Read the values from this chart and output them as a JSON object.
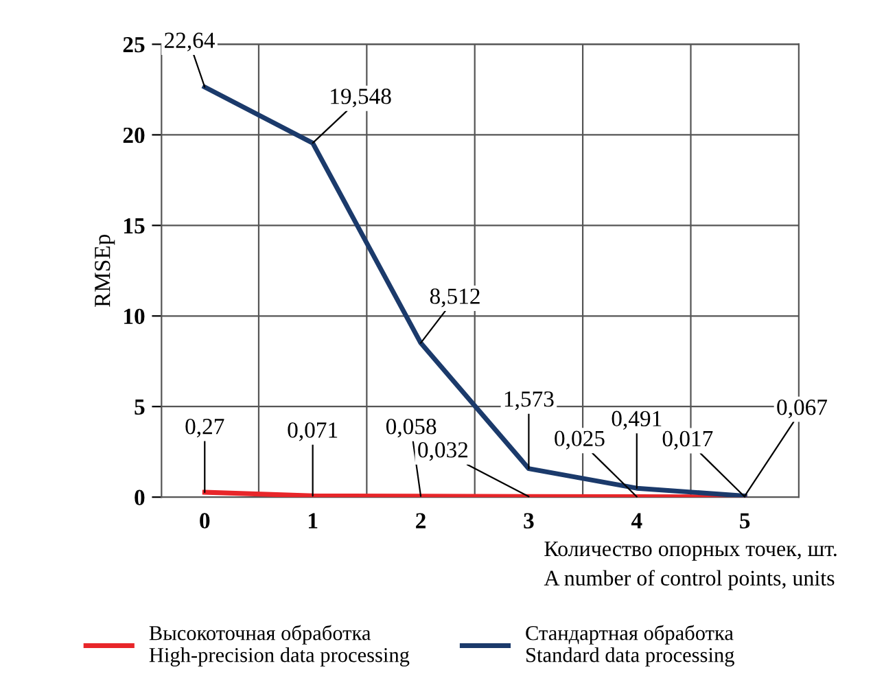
{
  "chart_data": {
    "type": "line",
    "categories": [
      "0",
      "1",
      "2",
      "3",
      "4",
      "5"
    ],
    "series": [
      {
        "name": "Высокоточная обработка\nHigh-precision data processing",
        "color": "#e8262a",
        "values": [
          0.27,
          0.071,
          0.058,
          0.032,
          0.025,
          0.017
        ],
        "value_labels": [
          "0,27",
          "0,071",
          "0,058",
          "0,032",
          "0,025",
          "0,017"
        ]
      },
      {
        "name": "Стандартная обработка\nStandard data processing",
        "color": "#1b3a6b",
        "values": [
          22.64,
          19.548,
          8.512,
          1.573,
          0.491,
          0.067
        ],
        "value_labels": [
          "22,64",
          "19,548",
          "8,512",
          "1,573",
          "0,491",
          "0,067"
        ]
      }
    ],
    "xlabel": "Количество опорных точек, шт.\nA number of control points, units",
    "ylabel": "RMSEp",
    "ylim": [
      0,
      25
    ],
    "yticks": [
      0,
      5,
      10,
      15,
      20,
      25
    ],
    "grid": true,
    "legend": "bottom",
    "marker": "none",
    "line_style": "solid"
  }
}
